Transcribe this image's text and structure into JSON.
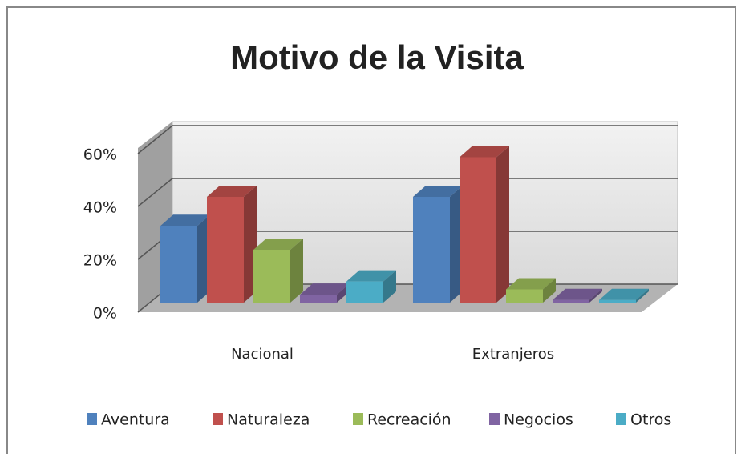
{
  "chart_data": {
    "type": "bar3d",
    "title": "Motivo de la Visita",
    "categories": [
      "Nacional",
      "Extranjeros"
    ],
    "series": [
      {
        "name": "Aventura",
        "color": "#4f81bd",
        "values": [
          29,
          40
        ]
      },
      {
        "name": "Naturaleza",
        "color": "#c0504d",
        "values": [
          40,
          55
        ]
      },
      {
        "name": "Recreación",
        "color": "#9bbb59",
        "values": [
          20,
          5
        ]
      },
      {
        "name": "Negocios",
        "color": "#8064a2",
        "values": [
          3,
          1
        ]
      },
      {
        "name": "Otros",
        "color": "#4bacc6",
        "values": [
          8,
          1
        ]
      }
    ],
    "ylim": [
      0,
      60
    ],
    "yticks": [
      {
        "value": 0,
        "label": "0%"
      },
      {
        "value": 20,
        "label": "20%"
      },
      {
        "value": 40,
        "label": "40%"
      },
      {
        "value": 60,
        "label": "60%"
      }
    ],
    "grid": true,
    "legend": "bottom"
  }
}
